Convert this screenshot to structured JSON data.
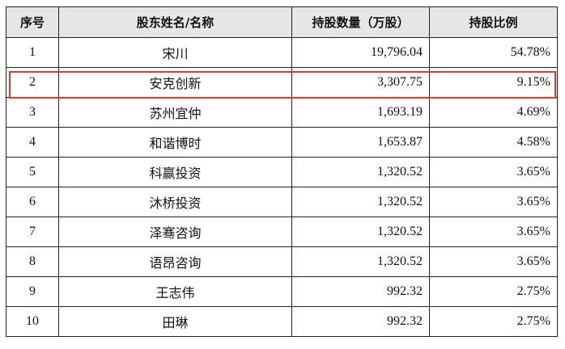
{
  "table": {
    "header": [
      "序号",
      "股东姓名/名称",
      "持股数量（万股）",
      "持股比例"
    ],
    "rows": [
      [
        "1",
        "宋川",
        "19,796.04",
        "54.78%"
      ],
      [
        "2",
        "安克创新",
        "3,307.75",
        "9.15%"
      ],
      [
        "3",
        "苏州宜仲",
        "1,693.19",
        "4.69%"
      ],
      [
        "4",
        "和谐博时",
        "1,653.87",
        "4.58%"
      ],
      [
        "5",
        "科赢投资",
        "1,320.52",
        "3.65%"
      ],
      [
        "6",
        "沐桥投资",
        "1,320.52",
        "3.65%"
      ],
      [
        "7",
        "泽骞咨询",
        "1,320.52",
        "3.65%"
      ],
      [
        "8",
        "语昂咨询",
        "1,320.52",
        "3.65%"
      ],
      [
        "9",
        "王志伟",
        "992.32",
        "2.75%"
      ],
      [
        "10",
        "田琳",
        "992.32",
        "2.75%"
      ]
    ]
  }
}
